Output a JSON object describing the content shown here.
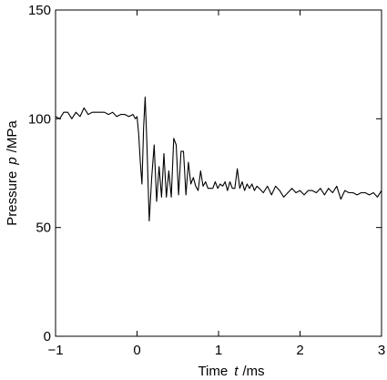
{
  "chart_data": {
    "type": "line",
    "title": "",
    "xlabel": {
      "prefix": "Time",
      "symbol": "t",
      "unit": "/ms"
    },
    "ylabel": {
      "prefix": "Pressure",
      "symbol": "p",
      "unit": "/MPa"
    },
    "xlim": [
      -1,
      3
    ],
    "ylim": [
      0,
      150
    ],
    "x_ticks": [
      -1,
      0,
      1,
      2,
      3
    ],
    "x_tick_labels": [
      "−1",
      "0",
      "1",
      "2",
      "3"
    ],
    "y_ticks": [
      0,
      50,
      100,
      150
    ],
    "y_tick_labels": [
      "0",
      "50",
      "100",
      "150"
    ],
    "grid": false,
    "legend": "none",
    "line_color": "#000000",
    "series": [
      {
        "x": [
          -1.0,
          -0.95,
          -0.9,
          -0.85,
          -0.8,
          -0.75,
          -0.7,
          -0.65,
          -0.6,
          -0.55,
          -0.5,
          -0.45,
          -0.4,
          -0.35,
          -0.3,
          -0.25,
          -0.2,
          -0.15,
          -0.1,
          -0.05,
          -0.02,
          0.0,
          0.02,
          0.04,
          0.06,
          0.08,
          0.1,
          0.12,
          0.15,
          0.18,
          0.21,
          0.24,
          0.27,
          0.3,
          0.33,
          0.36,
          0.39,
          0.42,
          0.45,
          0.48,
          0.51,
          0.54,
          0.57,
          0.6,
          0.63,
          0.66,
          0.69,
          0.72,
          0.75,
          0.78,
          0.81,
          0.84,
          0.87,
          0.9,
          0.93,
          0.96,
          0.99,
          1.02,
          1.05,
          1.08,
          1.11,
          1.14,
          1.17,
          1.2,
          1.23,
          1.26,
          1.29,
          1.32,
          1.35,
          1.38,
          1.41,
          1.44,
          1.47,
          1.5,
          1.55,
          1.6,
          1.65,
          1.7,
          1.75,
          1.8,
          1.85,
          1.9,
          1.95,
          2.0,
          2.05,
          2.1,
          2.15,
          2.2,
          2.25,
          2.3,
          2.35,
          2.4,
          2.45,
          2.5,
          2.55,
          2.6,
          2.65,
          2.7,
          2.75,
          2.8,
          2.85,
          2.9,
          2.95,
          3.0
        ],
        "y": [
          101,
          100,
          103,
          103,
          100,
          103,
          101,
          105,
          102,
          103,
          103,
          103,
          103,
          102,
          103,
          101,
          102,
          102,
          101,
          102,
          100,
          101,
          93,
          80,
          70,
          96,
          110,
          90,
          53,
          73,
          88,
          62,
          78,
          64,
          84,
          64,
          76,
          64,
          91,
          88,
          65,
          85,
          85,
          65,
          80,
          70,
          73,
          69,
          67,
          76,
          69,
          71,
          68,
          68,
          68,
          71,
          68,
          70,
          69,
          71,
          67,
          71,
          68,
          68,
          77,
          68,
          71,
          67,
          70,
          68,
          70,
          67,
          69,
          68,
          66,
          69,
          65,
          69,
          67,
          64,
          66,
          68,
          66,
          67,
          65,
          67,
          67,
          66,
          68,
          65,
          68,
          66,
          69,
          63,
          67,
          66,
          66,
          65,
          66,
          66,
          65,
          66,
          64,
          67
        ]
      }
    ]
  }
}
